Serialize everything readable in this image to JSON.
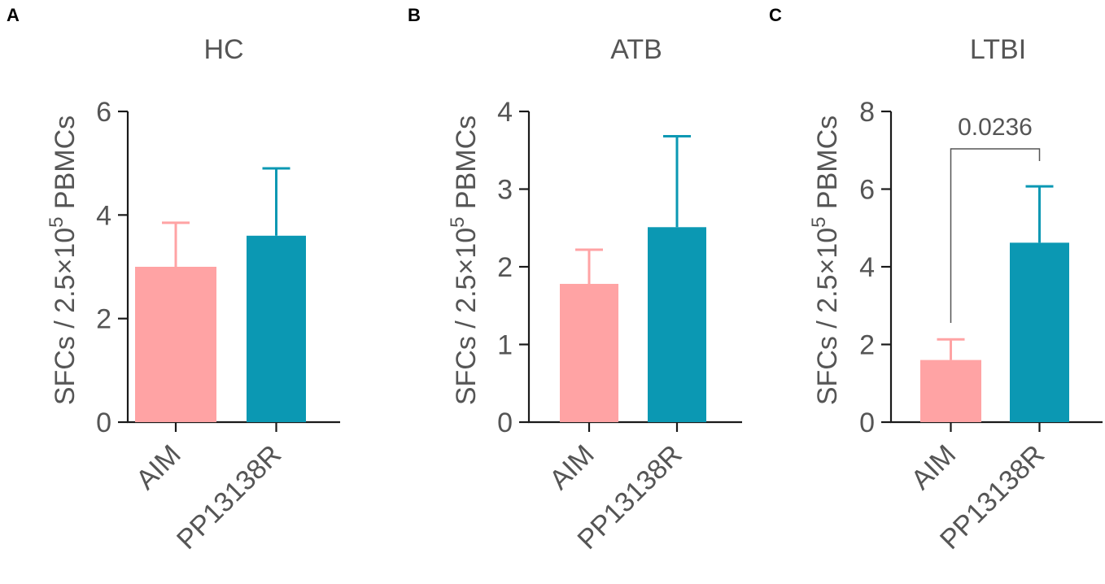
{
  "chart_data": [
    {
      "panel": "A",
      "type": "bar",
      "title": "HC",
      "ylabel": "SFCs / 2.5×10^5 PBMCs",
      "ylim": [
        0,
        6
      ],
      "yticks": [
        0,
        2,
        4,
        6
      ],
      "categories": [
        "AIM",
        "PP13138R"
      ],
      "values": [
        3.0,
        3.6
      ],
      "error_upper": [
        3.85,
        4.9
      ],
      "colors": [
        "#FFA3A4",
        "#0B98B3"
      ]
    },
    {
      "panel": "B",
      "type": "bar",
      "title": "ATB",
      "ylabel": "SFCs / 2.5×10^5 PBMCs",
      "ylim": [
        0,
        4
      ],
      "yticks": [
        0,
        1,
        2,
        3,
        4
      ],
      "categories": [
        "AIM",
        "PP13138R"
      ],
      "values": [
        1.78,
        2.51
      ],
      "error_upper": [
        2.22,
        3.68
      ],
      "colors": [
        "#FFA3A4",
        "#0B98B3"
      ]
    },
    {
      "panel": "C",
      "type": "bar",
      "title": "LTBI",
      "ylabel": "SFCs / 2.5×10^5 PBMCs",
      "ylim": [
        0,
        8
      ],
      "yticks": [
        0,
        2,
        4,
        6,
        8
      ],
      "categories": [
        "AIM",
        "PP13138R"
      ],
      "values": [
        1.6,
        4.62
      ],
      "error_upper": [
        2.13,
        6.07
      ],
      "colors": [
        "#FFA3A4",
        "#0B98B3"
      ],
      "significance": {
        "label": "0.0236",
        "between": [
          0,
          1
        ]
      }
    }
  ]
}
